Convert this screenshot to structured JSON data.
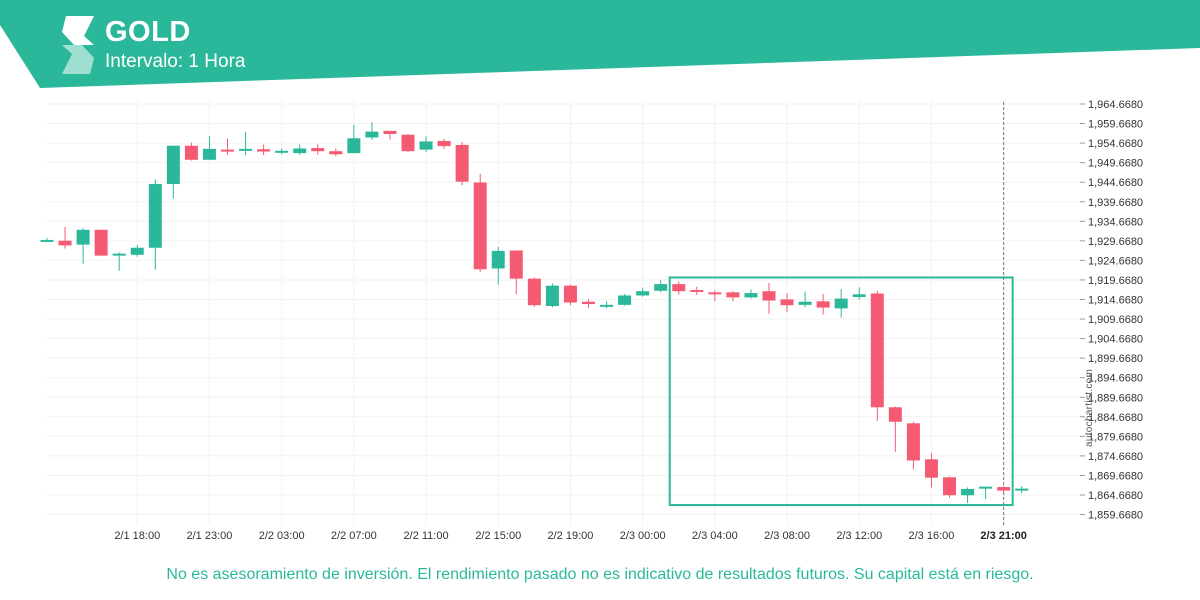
{
  "header": {
    "title": "GOLD",
    "subtitle": "Intervalo: 1 Hora"
  },
  "footer": {
    "disclaimer": "No es asesoramiento de inversión. El rendimiento pasado no es indicativo de resultados futuros. Su capital está en riesgo.",
    "watermark": "autochartist.com"
  },
  "colors": {
    "banner": "#2bb89a",
    "bullish": "#2bb89a",
    "bearish": "#f45b72",
    "highlight_box": "#2bb89a",
    "grid": "#f2f2f2"
  },
  "chart_data": {
    "type": "candlestick",
    "symbol": "GOLD",
    "interval": "1 Hora",
    "y_ticks": [
      "1,964.6680",
      "1,959.6680",
      "1,954.6680",
      "1,949.6680",
      "1,944.6680",
      "1,939.6680",
      "1,934.6680",
      "1,929.6680",
      "1,924.6680",
      "1,919.6680",
      "1,914.6680",
      "1,909.6680",
      "1,904.6680",
      "1,899.6680",
      "1,894.6680",
      "1,889.6680",
      "1,884.6680",
      "1,879.6680",
      "1,874.6680",
      "1,869.6680",
      "1,864.6680",
      "1,859.6680"
    ],
    "x_ticks": [
      "2/1 18:00",
      "2/1 23:00",
      "2/2 03:00",
      "2/2 07:00",
      "2/2 11:00",
      "2/2 15:00",
      "2/2 19:00",
      "2/3 00:00",
      "2/3 04:00",
      "2/3 08:00",
      "2/3 12:00",
      "2/3 16:00",
      "2/3 21:00"
    ],
    "x_ticks_index": [
      5,
      9,
      13,
      17,
      21,
      25,
      29,
      33,
      37,
      41,
      45,
      49,
      53
    ],
    "highlighted_x_tick": "2/3 21:00",
    "ylim": [
      1859.668,
      1964.668
    ],
    "candles": [
      {
        "o": 1929.9,
        "h": 1930.4,
        "l": 1929.4,
        "c": 1929.9
      },
      {
        "o": 1929.7,
        "h": 1933.2,
        "l": 1927.7,
        "c": 1928.5
      },
      {
        "o": 1928.7,
        "h": 1932.9,
        "l": 1923.8,
        "c": 1932.5
      },
      {
        "o": 1932.5,
        "h": 1932.5,
        "l": 1925.7,
        "c": 1925.9
      },
      {
        "o": 1926.0,
        "h": 1926.7,
        "l": 1922.0,
        "c": 1926.4
      },
      {
        "o": 1926.1,
        "h": 1928.6,
        "l": 1925.6,
        "c": 1927.9
      },
      {
        "o": 1927.9,
        "h": 1945.4,
        "l": 1922.3,
        "c": 1944.2
      },
      {
        "o": 1944.2,
        "h": 1954.0,
        "l": 1940.5,
        "c": 1954.0
      },
      {
        "o": 1954.0,
        "h": 1954.8,
        "l": 1950.2,
        "c": 1950.4
      },
      {
        "o": 1950.4,
        "h": 1956.5,
        "l": 1950.4,
        "c": 1953.2
      },
      {
        "o": 1953.0,
        "h": 1955.8,
        "l": 1951.7,
        "c": 1952.6
      },
      {
        "o": 1953.1,
        "h": 1957.6,
        "l": 1951.6,
        "c": 1953.2
      },
      {
        "o": 1953.1,
        "h": 1954.3,
        "l": 1951.6,
        "c": 1952.5
      },
      {
        "o": 1952.5,
        "h": 1953.3,
        "l": 1951.8,
        "c": 1952.7
      },
      {
        "o": 1952.1,
        "h": 1954.3,
        "l": 1951.6,
        "c": 1953.3
      },
      {
        "o": 1953.4,
        "h": 1954.4,
        "l": 1951.7,
        "c": 1952.6
      },
      {
        "o": 1952.6,
        "h": 1953.3,
        "l": 1951.3,
        "c": 1951.8
      },
      {
        "o": 1952.1,
        "h": 1959.3,
        "l": 1952.1,
        "c": 1955.9
      },
      {
        "o": 1956.1,
        "h": 1960.0,
        "l": 1955.5,
        "c": 1957.6
      },
      {
        "o": 1957.8,
        "h": 1957.8,
        "l": 1955.6,
        "c": 1957.0
      },
      {
        "o": 1956.8,
        "h": 1957.0,
        "l": 1952.4,
        "c": 1952.6
      },
      {
        "o": 1953.0,
        "h": 1956.4,
        "l": 1952.4,
        "c": 1955.1
      },
      {
        "o": 1955.2,
        "h": 1955.8,
        "l": 1953.2,
        "c": 1953.9
      },
      {
        "o": 1954.2,
        "h": 1954.9,
        "l": 1943.9,
        "c": 1944.8
      },
      {
        "o": 1944.6,
        "h": 1946.8,
        "l": 1921.7,
        "c": 1922.4
      },
      {
        "o": 1922.6,
        "h": 1928.1,
        "l": 1918.5,
        "c": 1927.1
      },
      {
        "o": 1927.2,
        "h": 1927.2,
        "l": 1916.0,
        "c": 1920.0
      },
      {
        "o": 1920.0,
        "h": 1920.3,
        "l": 1912.8,
        "c": 1913.2
      },
      {
        "o": 1913.0,
        "h": 1918.8,
        "l": 1912.7,
        "c": 1918.2
      },
      {
        "o": 1918.2,
        "h": 1918.5,
        "l": 1913.2,
        "c": 1913.9
      },
      {
        "o": 1914.1,
        "h": 1914.7,
        "l": 1912.5,
        "c": 1913.5
      },
      {
        "o": 1913.3,
        "h": 1914.2,
        "l": 1912.4,
        "c": 1913.3
      },
      {
        "o": 1913.3,
        "h": 1916.1,
        "l": 1913.1,
        "c": 1915.7
      },
      {
        "o": 1915.7,
        "h": 1917.7,
        "l": 1915.4,
        "c": 1916.8
      },
      {
        "o": 1916.9,
        "h": 1919.6,
        "l": 1916.5,
        "c": 1918.6
      },
      {
        "o": 1918.6,
        "h": 1919.3,
        "l": 1915.9,
        "c": 1916.8
      },
      {
        "o": 1917.1,
        "h": 1917.9,
        "l": 1915.8,
        "c": 1916.6
      },
      {
        "o": 1916.5,
        "h": 1917.0,
        "l": 1914.3,
        "c": 1916.2
      },
      {
        "o": 1916.5,
        "h": 1916.9,
        "l": 1914.2,
        "c": 1915.2
      },
      {
        "o": 1915.2,
        "h": 1917.2,
        "l": 1915.0,
        "c": 1916.3
      },
      {
        "o": 1916.8,
        "h": 1918.9,
        "l": 1911.0,
        "c": 1914.4
      },
      {
        "o": 1914.7,
        "h": 1916.3,
        "l": 1911.4,
        "c": 1913.2
      },
      {
        "o": 1913.3,
        "h": 1916.7,
        "l": 1912.7,
        "c": 1914.1
      },
      {
        "o": 1914.2,
        "h": 1916.1,
        "l": 1910.8,
        "c": 1912.6
      },
      {
        "o": 1912.4,
        "h": 1917.3,
        "l": 1910.1,
        "c": 1914.9
      },
      {
        "o": 1915.3,
        "h": 1917.8,
        "l": 1914.6,
        "c": 1916.0
      },
      {
        "o": 1916.2,
        "h": 1916.9,
        "l": 1883.7,
        "c": 1887.1
      },
      {
        "o": 1887.1,
        "h": 1887.3,
        "l": 1875.7,
        "c": 1883.4
      },
      {
        "o": 1883.0,
        "h": 1883.4,
        "l": 1871.2,
        "c": 1873.5
      },
      {
        "o": 1873.8,
        "h": 1875.4,
        "l": 1866.6,
        "c": 1869.1
      },
      {
        "o": 1869.2,
        "h": 1869.4,
        "l": 1864.0,
        "c": 1864.6
      },
      {
        "o": 1864.6,
        "h": 1866.6,
        "l": 1862.6,
        "c": 1866.2
      },
      {
        "o": 1866.3,
        "h": 1866.8,
        "l": 1863.7,
        "c": 1866.8
      },
      {
        "o": 1866.7,
        "h": 1866.9,
        "l": 1864.9,
        "c": 1865.8
      },
      {
        "o": 1866.3,
        "h": 1866.9,
        "l": 1865.1,
        "c": 1866.3
      }
    ],
    "highlight_box": {
      "x_start_index": 34.5,
      "x_end_index": 53.5,
      "y_top": 1920.3,
      "y_bottom": 1862.1
    },
    "current_time_line_index": 53
  }
}
